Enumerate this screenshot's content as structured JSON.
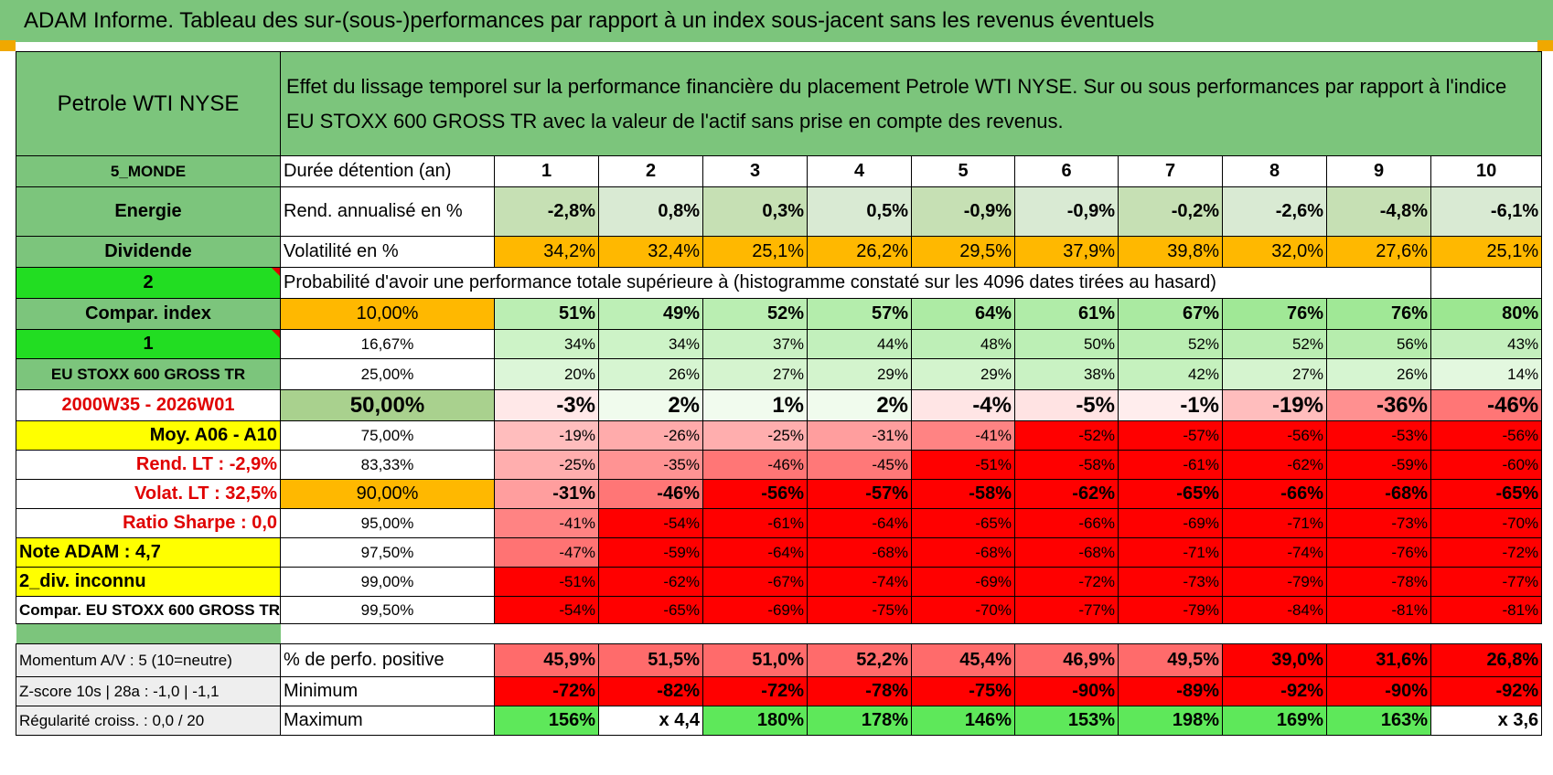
{
  "banner": "ADAM Informe. Tableau des sur-(sous-)performances par rapport à un index sous-jacent sans les revenus éventuels",
  "asset_name": "Petrole WTI NYSE",
  "description": "Effet du lissage temporel sur la performance financière du placement Petrole WTI NYSE. Sur ou sous performances par rapport à l'indice EU STOXX 600 GROSS TR avec la valeur de l'actif sans prise en compte des revenus.",
  "left": {
    "zone": "5_MONDE",
    "sector": "Energie",
    "dividend": "Dividende",
    "flag2": "2",
    "compar_index": "Compar. index",
    "flag1": "1",
    "index_name": "EU STOXX 600 GROSS TR",
    "period": "2000W35 - 2026W01",
    "moy": "Moy. A06 - A10",
    "rend_lt": "Rend. LT :    -2,9%",
    "volat_lt": "Volat. LT :    32,5%",
    "sharpe": "Ratio Sharpe :     0,0",
    "note": "Note ADAM : 4,7",
    "div": "2_div. inconnu",
    "compar_full": "Compar. EU STOXX 600 GROSS TR"
  },
  "labels": {
    "duree": "Durée détention (an)",
    "rend": "Rend. annualisé en %",
    "volat": "Volatilité en %",
    "proba": "Probabilité d'avoir une performance totale supérieure à (histogramme constaté sur les 4096 dates tirées au hasard)"
  },
  "years": [
    "1",
    "2",
    "3",
    "4",
    "5",
    "6",
    "7",
    "8",
    "9",
    "10"
  ],
  "rend": [
    "-2,8%",
    "0,8%",
    "0,3%",
    "0,5%",
    "-0,9%",
    "-0,9%",
    "-0,2%",
    "-2,6%",
    "-4,8%",
    "-6,1%"
  ],
  "volat": [
    "34,2%",
    "32,4%",
    "25,1%",
    "26,2%",
    "29,5%",
    "37,9%",
    "39,8%",
    "32,0%",
    "27,6%",
    "25,1%"
  ],
  "prob_rows": [
    {
      "threshold": "10,00%",
      "values": [
        "51%",
        "49%",
        "52%",
        "57%",
        "64%",
        "61%",
        "67%",
        "76%",
        "76%",
        "80%"
      ]
    },
    {
      "threshold": "16,67%",
      "values": [
        "34%",
        "34%",
        "37%",
        "44%",
        "48%",
        "50%",
        "52%",
        "52%",
        "56%",
        "43%"
      ]
    },
    {
      "threshold": "25,00%",
      "values": [
        "20%",
        "26%",
        "27%",
        "29%",
        "29%",
        "38%",
        "42%",
        "27%",
        "26%",
        "14%"
      ]
    },
    {
      "threshold": "50,00%",
      "values": [
        "-3%",
        "2%",
        "1%",
        "2%",
        "-4%",
        "-5%",
        "-1%",
        "-19%",
        "-36%",
        "-46%"
      ]
    },
    {
      "threshold": "75,00%",
      "values": [
        "-19%",
        "-26%",
        "-25%",
        "-31%",
        "-41%",
        "-52%",
        "-57%",
        "-56%",
        "-53%",
        "-56%"
      ]
    },
    {
      "threshold": "83,33%",
      "values": [
        "-25%",
        "-35%",
        "-46%",
        "-45%",
        "-51%",
        "-58%",
        "-61%",
        "-62%",
        "-59%",
        "-60%"
      ]
    },
    {
      "threshold": "90,00%",
      "values": [
        "-31%",
        "-46%",
        "-56%",
        "-57%",
        "-58%",
        "-62%",
        "-65%",
        "-66%",
        "-68%",
        "-65%"
      ]
    },
    {
      "threshold": "95,00%",
      "values": [
        "-41%",
        "-54%",
        "-61%",
        "-64%",
        "-65%",
        "-66%",
        "-69%",
        "-71%",
        "-73%",
        "-70%"
      ]
    },
    {
      "threshold": "97,50%",
      "values": [
        "-47%",
        "-59%",
        "-64%",
        "-68%",
        "-68%",
        "-68%",
        "-71%",
        "-74%",
        "-76%",
        "-72%"
      ]
    },
    {
      "threshold": "99,00%",
      "values": [
        "-51%",
        "-62%",
        "-67%",
        "-74%",
        "-69%",
        "-72%",
        "-73%",
        "-79%",
        "-78%",
        "-77%"
      ]
    },
    {
      "threshold": "99,50%",
      "values": [
        "-54%",
        "-65%",
        "-69%",
        "-75%",
        "-70%",
        "-77%",
        "-79%",
        "-84%",
        "-81%",
        "-81%"
      ]
    }
  ],
  "bottom": {
    "momentum": "Momentum A/V : 5 (10=neutre)",
    "zscore": "Z-score 10s | 28a : -1,0 | -1,1",
    "regul": "Régularité croiss. : 0,0 / 20",
    "pos_label": "% de perfo. positive",
    "min_label": "Minimum",
    "max_label": "Maximum",
    "pos": [
      "45,9%",
      "51,5%",
      "51,0%",
      "52,2%",
      "45,4%",
      "46,9%",
      "49,5%",
      "39,0%",
      "31,6%",
      "26,8%"
    ],
    "min": [
      "-72%",
      "-82%",
      "-72%",
      "-78%",
      "-75%",
      "-90%",
      "-89%",
      "-92%",
      "-90%",
      "-92%"
    ],
    "max": [
      "156%",
      "x 4,4",
      "180%",
      "178%",
      "146%",
      "153%",
      "198%",
      "169%",
      "163%",
      "x 3,6"
    ]
  },
  "colors": {
    "green_header": "#7cc57c",
    "bright_green": "#22dd22",
    "yellow": "#ffff00",
    "orange": "#ffb800",
    "red": "#ff0000"
  }
}
